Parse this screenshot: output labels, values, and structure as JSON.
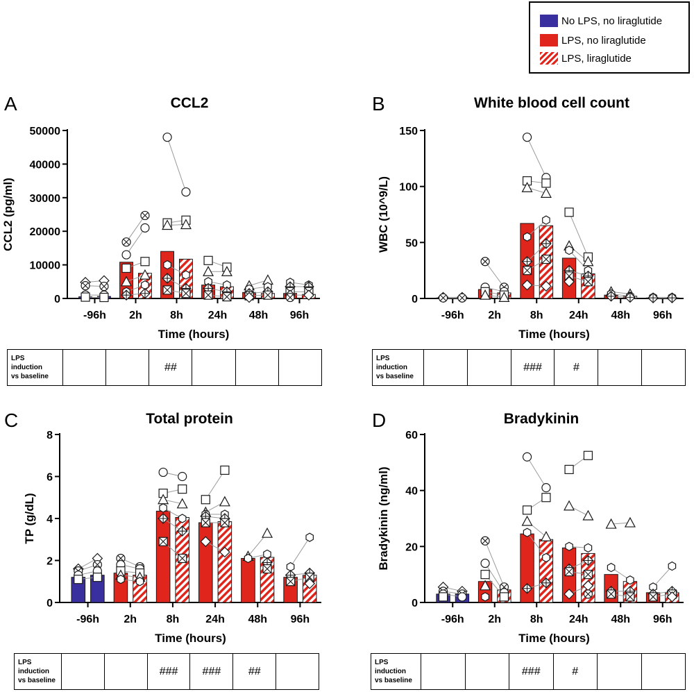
{
  "legend": {
    "items": [
      {
        "label": "No LPS, no liraglutide",
        "style": "solid",
        "color": "#3a2f9e"
      },
      {
        "label": "LPS, no liraglutide",
        "style": "solid",
        "color": "#e0251c"
      },
      {
        "label": "LPS, liraglutide",
        "style": "hatched",
        "color": "#e0251c"
      }
    ]
  },
  "colors": {
    "baseline_bar": "#3a2f9e",
    "lps_bar": "#e0251c",
    "hatch_bar": "#e0251c",
    "line": "#9a9a9a"
  },
  "chart_data": [
    {
      "id": "A",
      "letter": "A",
      "type": "bar",
      "title": "CCL2",
      "ylabel": "CCL2 (pg/ml)",
      "xlabel": "Time (hours)",
      "ylim": [
        0,
        50000
      ],
      "yticks": [
        0,
        10000,
        20000,
        30000,
        40000,
        50000
      ],
      "categories": [
        "-96h",
        "2h",
        "8h",
        "24h",
        "48h",
        "96h"
      ],
      "series": [
        {
          "name": "No LPS / LPS, no liraglutide",
          "values": [
            500,
            10800,
            14000,
            4000,
            1800,
            1500
          ]
        },
        {
          "name": "LPS, liraglutide",
          "values": [
            600,
            7500,
            11700,
            3500,
            1500,
            1200
          ]
        }
      ],
      "first_group_baseline": true,
      "points": [
        [
          [
            4800,
            3800,
            1000,
            400
          ],
          [
            5300,
            3600,
            1000,
            300
          ]
        ],
        [
          [
            16800,
            13000,
            9000,
            5000,
            2000,
            1000
          ],
          [
            24700,
            21000,
            11000,
            7000,
            4000,
            1500
          ]
        ],
        [
          [
            48000,
            22500,
            21800,
            10000,
            6000,
            2500
          ],
          [
            31700,
            23300,
            22000,
            7000,
            3000,
            1500
          ]
        ],
        [
          [
            11300,
            8000,
            5000,
            3000,
            1000
          ],
          [
            9300,
            8000,
            4000,
            2000,
            500
          ]
        ],
        [
          [
            3800,
            2800,
            1500,
            800,
            300
          ],
          [
            5500,
            3500,
            2000,
            1000
          ]
        ],
        [
          [
            4800,
            3500,
            2000,
            1000,
            300
          ],
          [
            4000,
            3500,
            2000,
            1000
          ]
        ]
      ],
      "stats": {
        "label_lines": [
          "LPS",
          "induction",
          "vs baseline"
        ],
        "cells": [
          "",
          "",
          "##",
          "",
          "",
          ""
        ]
      }
    },
    {
      "id": "B",
      "letter": "B",
      "type": "bar",
      "title": "White blood cell count",
      "ylabel": "WBC (10^9/L)",
      "xlabel": "Time (hours)",
      "ylim": [
        0,
        150
      ],
      "yticks": [
        0,
        50,
        100,
        150
      ],
      "categories": [
        "-96h",
        "2h",
        "8h",
        "24h",
        "48h",
        "96h"
      ],
      "series": [
        {
          "name": "No LPS / LPS, no liraglutide",
          "values": [
            0.5,
            8,
            67,
            36,
            3,
            0.5
          ]
        },
        {
          "name": "LPS, liraglutide",
          "values": [
            0.5,
            5,
            65,
            22,
            2,
            0.5
          ]
        }
      ],
      "first_group_baseline": false,
      "points": [
        [
          [
            1,
            0.5
          ],
          [
            1,
            0.5
          ]
        ],
        [
          [
            33,
            10,
            6,
            3
          ],
          [
            10,
            6,
            3,
            1
          ]
        ],
        [
          [
            144,
            105,
            99,
            55,
            33,
            25,
            12
          ],
          [
            108,
            103,
            94,
            70,
            49,
            35,
            11
          ]
        ],
        [
          [
            77,
            47,
            43,
            25,
            20,
            15
          ],
          [
            37,
            33,
            25,
            20,
            15
          ]
        ],
        [
          [
            6,
            4,
            2
          ],
          [
            4,
            2,
            1
          ]
        ],
        [
          [
            1,
            0.5
          ],
          [
            1,
            0.5
          ]
        ]
      ],
      "stats": {
        "label_lines": [
          "LPS",
          "induction",
          "vs baseline"
        ],
        "cells": [
          "",
          "",
          "###",
          "#",
          "",
          ""
        ]
      }
    },
    {
      "id": "C",
      "letter": "C",
      "type": "bar",
      "title": "Total protein",
      "ylabel": "TP (g/dL)",
      "xlabel": "Time (hours)",
      "ylim": [
        0,
        8
      ],
      "yticks": [
        0,
        2,
        4,
        6,
        8
      ],
      "categories": [
        "-96h",
        "2h",
        "8h",
        "24h",
        "48h",
        "96h"
      ],
      "series": [
        {
          "name": "No LPS / LPS, no liraglutide",
          "values": [
            1.2,
            1.4,
            4.35,
            3.8,
            2.1,
            1.2
          ]
        },
        {
          "name": "LPS, liraglutide",
          "values": [
            1.3,
            1.3,
            4.05,
            3.85,
            2.15,
            1.3
          ]
        }
      ],
      "first_group_baseline": true,
      "points": [
        [
          [
            1.6,
            1.5,
            1.3,
            1.1
          ],
          [
            2.1,
            1.8,
            1.5,
            1.2
          ]
        ],
        [
          [
            2.1,
            1.8,
            1.5,
            1.3,
            1.1
          ],
          [
            1.7,
            1.6,
            1.4,
            1.2,
            1.0
          ]
        ],
        [
          [
            6.2,
            5.2,
            4.9,
            4.5,
            4.0,
            2.9
          ],
          [
            6.0,
            5.4,
            4.7,
            4.0,
            3.4,
            2.1
          ]
        ],
        [
          [
            4.9,
            4.3,
            4.2,
            4.1,
            3.8,
            2.9
          ],
          [
            6.3,
            4.8,
            4.2,
            4.0,
            3.8,
            2.4
          ]
        ],
        [
          [
            2.2,
            2.1
          ],
          [
            3.3,
            2.3,
            1.9,
            1.6
          ]
        ],
        [
          [
            1.7,
            1.3,
            1.0
          ],
          [
            3.1,
            1.4,
            1.2,
            0.9
          ]
        ]
      ],
      "stats": {
        "label_lines": [
          "LPS",
          "induction",
          "vs baseline"
        ],
        "cells": [
          "",
          "",
          "###",
          "###",
          "##",
          ""
        ]
      }
    },
    {
      "id": "D",
      "letter": "D",
      "type": "bar",
      "title": "Bradykinin",
      "ylabel": "Bradykinin (ng/ml)",
      "xlabel": "Time (hours)",
      "ylim": [
        0,
        60
      ],
      "yticks": [
        0,
        20,
        40,
        60
      ],
      "categories": [
        "-96h",
        "2h",
        "8h",
        "24h",
        "48h",
        "96h"
      ],
      "series": [
        {
          "name": "No LPS / LPS, no liraglutide",
          "values": [
            3,
            7.5,
            24.5,
            19.5,
            10,
            3.5
          ]
        },
        {
          "name": "LPS, liraglutide",
          "values": [
            3,
            4.5,
            22.5,
            17.5,
            7.5,
            3.5
          ]
        }
      ],
      "first_group_baseline": true,
      "points": [
        [
          [
            5.5,
            4.0,
            3.0,
            2.0
          ],
          [
            4.0,
            3.0,
            2.0
          ]
        ],
        [
          [
            22,
            14,
            10,
            6,
            2
          ],
          [
            5.5,
            3.5,
            2.0
          ]
        ],
        [
          [
            52,
            33,
            29,
            25,
            5
          ],
          [
            41,
            37.5,
            23.5,
            16,
            7
          ]
        ],
        [
          [
            47.5,
            34.5,
            20,
            12,
            11,
            3
          ],
          [
            52.5,
            31,
            19.5,
            15,
            10,
            6,
            3
          ]
        ],
        [
          [
            28,
            12.5,
            4,
            3
          ],
          [
            28.5,
            8,
            4,
            2
          ]
        ],
        [
          [
            5.5,
            3,
            2
          ],
          [
            13,
            4,
            3,
            2
          ]
        ]
      ],
      "stats": {
        "label_lines": [
          "LPS",
          "induction",
          "vs baseline"
        ],
        "cells": [
          "",
          "",
          "###",
          "#",
          "",
          ""
        ]
      }
    }
  ]
}
